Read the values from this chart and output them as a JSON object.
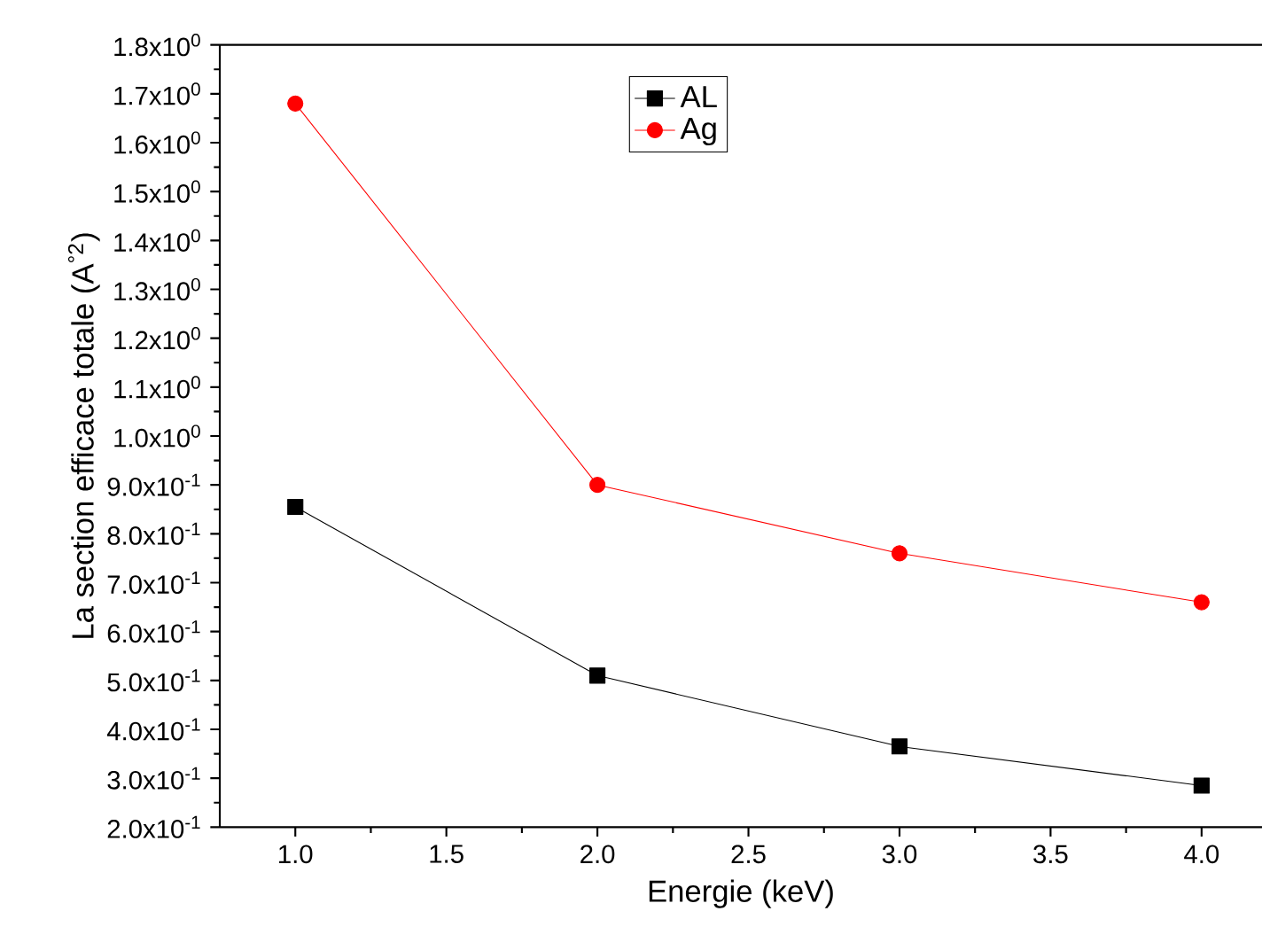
{
  "chart_data": {
    "type": "line",
    "xlabel": "Energie (keV)",
    "ylabel": "La section efficace totale (A$^{°2}$)",
    "x": [
      1.0,
      2.0,
      3.0,
      4.0
    ],
    "series": [
      {
        "name": "AL",
        "color": "#000000",
        "marker": "square",
        "values": [
          0.855,
          0.51,
          0.365,
          0.285
        ]
      },
      {
        "name": "Ag",
        "color": "#ff0000",
        "marker": "circle",
        "values": [
          1.68,
          0.9,
          0.76,
          0.66
        ]
      }
    ],
    "xlim": [
      0.75,
      4.2
    ],
    "xticks": [
      {
        "value": 1.0,
        "label": "1.0"
      },
      1.5,
      {
        "value": 2.0,
        "label": "2.0"
      },
      2.5,
      {
        "value": 3.0,
        "label": "3.0"
      },
      3.5,
      {
        "value": 4.0,
        "label": "4.0"
      }
    ],
    "ylim": [
      0.2,
      1.8
    ],
    "yticks": [
      {
        "value": 0.2,
        "label": "2.0x10$^{-1}$"
      },
      {
        "value": 0.3,
        "label": "3.0x10$^{-1}$"
      },
      {
        "value": 0.4,
        "label": "4.0x10$^{-1}$"
      },
      {
        "value": 0.5,
        "label": "5.0x10$^{-1}$"
      },
      {
        "value": 0.6,
        "label": "6.0x10$^{-1}$"
      },
      {
        "value": 0.7,
        "label": "7.0x10$^{-1}$"
      },
      {
        "value": 0.8,
        "label": "8.0x10$^{-1}$"
      },
      {
        "value": 0.9,
        "label": "9.0x10$^{-1}$"
      },
      {
        "value": 1.0,
        "label": "1.0x10$^{0}$"
      },
      {
        "value": 1.1,
        "label": "1.1x10$^{0}$"
      },
      {
        "value": 1.2,
        "label": "1.2x10$^{0}$"
      },
      {
        "value": 1.3,
        "label": "1.3x10$^{0}$"
      },
      {
        "value": 1.4,
        "label": "1.4x10$^{0}$"
      },
      {
        "value": 1.5,
        "label": "1.5x10$^{0}$"
      },
      {
        "value": 1.6,
        "label": "1.6x10$^{0}$"
      },
      {
        "value": 1.7,
        "label": "1.7x10$^{0}$"
      },
      {
        "value": 1.8,
        "label": "1.8x10$^{0}$"
      }
    ],
    "grid": false,
    "legend": "top",
    "line_style": "solid"
  }
}
